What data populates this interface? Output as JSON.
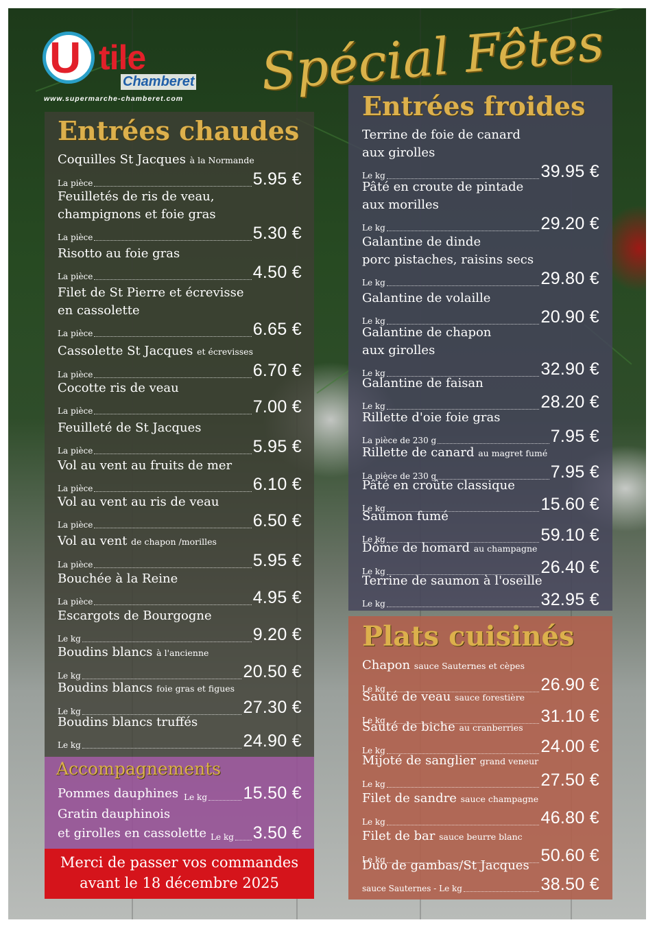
{
  "brand": {
    "logo_letter": "U",
    "logo_rest": "tile",
    "city": "Chamberet",
    "website": "www.supermarche-chamberet.com"
  },
  "headline": "Spécial Fêtes",
  "colors": {
    "title_gold": "#dcb04c",
    "logo_red": "#e2202a",
    "logo_blue": "#1f5fa8",
    "banner_red": "#d5141b"
  },
  "entrees_chaudes": {
    "title": "Entrées chaudes",
    "items": [
      {
        "name": "Coquilles St Jacques",
        "note": "à la Normande",
        "unit": "La pièce",
        "price": "5.95 €"
      },
      {
        "name": "Feuilletés de ris de veau,",
        "name2": "champignons et foie gras",
        "unit": "La pièce",
        "price": "5.30 €"
      },
      {
        "name": "Risotto au foie gras",
        "unit": "La pièce",
        "price": "4.50 €"
      },
      {
        "name": "Filet de St Pierre et écrevisse",
        "name2": "en cassolette",
        "unit": "La pièce",
        "price": "6.65 €"
      },
      {
        "name": "Cassolette St Jacques",
        "note": "et écrevisses",
        "unit": "La pièce",
        "price": "6.70 €"
      },
      {
        "name": "Cocotte ris de veau",
        "unit": "La pièce",
        "price": "7.00 €"
      },
      {
        "name": "Feuilleté de St Jacques",
        "unit": "La pièce",
        "price": "5.95 €"
      },
      {
        "name": "Vol au vent au fruits de mer",
        "unit": "La pièce",
        "price": "6.10 €"
      },
      {
        "name": "Vol au vent au ris de veau",
        "unit": "La pièce",
        "price": "6.50 €"
      },
      {
        "name": "Vol au vent",
        "note": "de chapon /morilles",
        "unit": "La pièce",
        "price": "5.95 €"
      },
      {
        "name": "Bouchée à la Reine",
        "unit": "La pièce",
        "price": "4.95 €"
      },
      {
        "name": "Escargots de Bourgogne",
        "unit": "Le kg",
        "price": "9.20 €"
      },
      {
        "name": "Boudins blancs",
        "note": "à l'ancienne",
        "unit": "Le kg",
        "price": "20.50 €"
      },
      {
        "name": "Boudins blancs",
        "note": "foie gras et figues",
        "unit": "Le kg",
        "price": "27.30 €"
      },
      {
        "name": "Boudins blancs truffés",
        "unit": "Le kg",
        "price": "24.90 €"
      }
    ]
  },
  "accompagnements": {
    "title": "Accompagnements",
    "items": [
      {
        "name": "Pommes dauphines",
        "unit": "Le kg",
        "price": "15.50 €"
      },
      {
        "name": "Gratin dauphinois",
        "name2": "et girolles en cassolette",
        "unit": "Le kg",
        "price": "3.50 €"
      }
    ]
  },
  "banner": {
    "line1": "Merci de passer vos commandes",
    "line2": "avant le 18 décembre 2025"
  },
  "entrees_froides": {
    "title": "Entrées froides",
    "items": [
      {
        "name": "Terrine de foie de canard",
        "name2": "aux girolles",
        "unit": "Le kg",
        "price": "39.95 €"
      },
      {
        "name": "Pâté en croute de pintade",
        "name2": "aux morilles",
        "unit": "Le kg",
        "price": "29.20 €"
      },
      {
        "name": "Galantine de dinde",
        "name2": "porc pistaches, raisins secs",
        "unit": "Le kg",
        "price": "29.80 €"
      },
      {
        "name": "Galantine de volaille",
        "unit": "Le kg",
        "price": "20.90 €"
      },
      {
        "name": "Galantine de chapon",
        "name2": "aux girolles",
        "unit": "Le kg",
        "price": "32.90 €"
      },
      {
        "name": "Galantine de faisan",
        "unit": "Le kg",
        "price": "28.20 €"
      },
      {
        "name": "Rillette d'oie foie gras",
        "unit": "La pièce de 230 g",
        "price": "7.95 €"
      },
      {
        "name": "Rillette de canard",
        "note": "au magret fumé",
        "unit": "La pièce de 230 g",
        "price": "7.95 €"
      },
      {
        "name": "Pâté en croûte classique",
        "unit": "Le kg",
        "price": "15.60 €"
      },
      {
        "name": "Saumon fumé",
        "unit": "Le kg",
        "price": "59.10 €"
      },
      {
        "name": "Dôme de homard",
        "note": "au champagne",
        "unit": "Le kg",
        "price": "26.40 €"
      },
      {
        "name": "Terrine de saumon à l'oseille",
        "unit": "Le kg",
        "price": "32.95 €"
      }
    ]
  },
  "plats_cuisines": {
    "title": "Plats cuisinés",
    "items": [
      {
        "name": "Chapon",
        "note": "sauce Sauternes et cèpes",
        "unit": "Le kg",
        "price": "26.90 €"
      },
      {
        "name": "Sauté de veau",
        "note": "sauce forestière",
        "unit": "Le kg",
        "price": "31.10 €"
      },
      {
        "name": "Sauté de biche",
        "note": "au cranberries",
        "unit": "Le kg",
        "price": "24.00 €"
      },
      {
        "name": "Mijoté de sanglier",
        "note": "grand veneur",
        "unit": "Le kg",
        "price": "27.50 €"
      },
      {
        "name": "Filet de sandre",
        "note": "sauce champagne",
        "unit": "Le kg",
        "price": "46.80 €"
      },
      {
        "name": "Filet de bar",
        "note": "sauce beurre blanc",
        "unit": "Le kg",
        "price": "50.60 €"
      },
      {
        "name": "Duo de gambas/St Jacques",
        "unit": "sauce Sauternes - Le kg",
        "price": "38.50 €"
      }
    ]
  }
}
